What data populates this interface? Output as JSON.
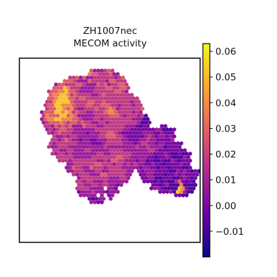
{
  "chart_data": {
    "type": "heatmap",
    "title_line1": "ZH1007nec",
    "title_line2": "MECOM activity",
    "xlabel": "",
    "ylabel": "",
    "grid": false,
    "legend": "colorbar-right",
    "colormap": "plasma",
    "colormap_stops": [
      "#0d0887",
      "#6a00a8",
      "#b12a90",
      "#e16462",
      "#fca636",
      "#f0f921"
    ],
    "vmin": -0.02,
    "vmax": 0.063,
    "colorbar_ticks": [
      -0.01,
      0.0,
      0.01,
      0.02,
      0.03,
      0.04,
      0.05,
      0.06
    ],
    "colorbar_tick_labels": [
      "−0.01",
      "0.00",
      "0.01",
      "0.02",
      "0.03",
      "0.04",
      "0.05",
      "0.06"
    ],
    "spot_grid": {
      "rows": 48,
      "cols": 49,
      "activity_rows": [
        "                                                 ",
        "                                                 ",
        "                                                 ",
        "                                                 ",
        "                  fdddefe                        ",
        "                 gffeeefdd                       ",
        "            eefdfddeeeeeedef                     ",
        "          fffedddfeeeedffeee                     ",
        "        dffeeeffedddfefdeeffe                    ",
        "       fffhgeeeddddeeeffeeffe                    ",
        "      effgghffeddddeeeeeeffed                    ",
        "      fgghhgefeeeeddefeeeeeeee                   ",
        "      ffghhhffeffeeeeeeeeeeeeeee                 ",
        "     eeghhhhfeeeeffeefeeeeeeedee                 ",
        "     effhhgggfeeeffeefffeedeeedee                ",
        "     effhhgfgeddeeefeefgfdeeeeeef                ",
        "    dfffhhghgefeeddeeefggfeeeeded                ",
        "    egfffhhfgfdddddeeeefffedeeedeb               ",
        "    dfgghhgggffedddeedeeeeeeeedddbb              ",
        "    defffgfeffefeeddeedeeeeeeeedbbc              ",
        "     eedfefefdddfeeeddeeeeeedddcbcc   cc         ",
        "     dedeffeeddddddeeeeeeeeddcccccccddbbbc       ",
        "      edefeeeddddcdddeeffedccccccdddccdccc       ",
        "       eddedeeddddddeefffeedcccccdedcddcdc       ",
        "       eedefeddcddccdddeeeeddcccddeddccccd       ",
        "      edeeeeeeddddcccdeeeeedddcdeeddcddccccc     ",
        "      eddeeeddddddddddeddddddddeddeddddbcccc     ",
        "       eeddeedddeedddddeeeedddddddeedcccccccc    ",
        "       edeededddddddeeddeeeeeeddddddcccdcbbcbbc  ",
        "        eeeeedddddeeeeeeeffeedddddccbccdcbbbdc   ",
        "         eeedeeeeeeeddedffeedddcddbcbbcbbdcbccc  ",
        "           ddeeeeeeffeeedeedededdccdccbccccdcc   ",
        "           ddfeeddfeeedeeeedddddcddccbccbcccbbc  ",
        "           ddeeedddeeddeeeeedd dcdddccccbbdcdcbcb",
        "             edeeedddffeeeeedd  ccddcccbccdcdcccc",
        "              deeeeeeeedddeed   ccddbbcccbbcdcbc ",
        "              eedeedddedddddd    cccbcbcbbdfcbcb ",
        "              eeddeedeeddcd        ccbcdbbbgbbbb ",
        "              eeeedddd ddc         cddcbbbbhgcbb ",
        "              cdddedddcddd           cccdbhgdbb  ",
        "               ddddd d cd                 ccbb   ",
        "                 cbcdd d                         ",
        "                  ddcc                           ",
        "                                                 ",
        "                                                 ",
        "                                                 ",
        "                                                 ",
        "                                                 "
      ],
      "activity_level_values": {
        "a": -0.015,
        "b": -0.008,
        "c": 0.0,
        "d": 0.008,
        "e": 0.018,
        "f": 0.028,
        "g": 0.038,
        "h": 0.052
      }
    }
  }
}
